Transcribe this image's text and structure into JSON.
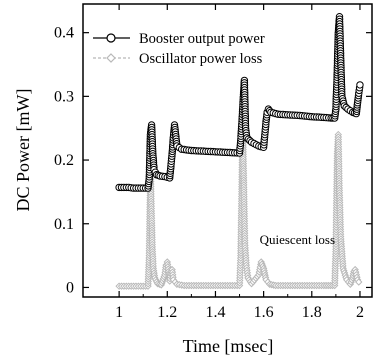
{
  "chart_data": {
    "type": "line",
    "title": "",
    "xlabel": "Time [msec]",
    "ylabel": "DC Power [mW]",
    "xlim": [
      0.85,
      2.05
    ],
    "ylim": [
      -0.015,
      0.445
    ],
    "x_ticks": [
      1,
      1.2,
      1.4,
      1.6,
      1.8,
      2
    ],
    "x_tick_labels": [
      "1",
      "1.2",
      "1.4",
      "1.6",
      "1.8",
      "2"
    ],
    "y_ticks": [
      0,
      0.1,
      0.2,
      0.3,
      0.4
    ],
    "y_tick_labels": [
      "0",
      "0.1",
      "0.2",
      "0.3",
      "0.4"
    ],
    "legend_position": "top-left",
    "grid": false,
    "series": [
      {
        "name": "Booster output power",
        "color": "#000000",
        "marker": "open-circle",
        "points": [
          [
            1.0,
            0.157
          ],
          [
            1.02,
            0.157
          ],
          [
            1.04,
            0.157
          ],
          [
            1.06,
            0.156
          ],
          [
            1.08,
            0.156
          ],
          [
            1.1,
            0.156
          ],
          [
            1.12,
            0.156
          ],
          [
            1.125,
            0.17
          ],
          [
            1.13,
            0.24
          ],
          [
            1.135,
            0.255
          ],
          [
            1.14,
            0.21
          ],
          [
            1.145,
            0.185
          ],
          [
            1.155,
            0.177
          ],
          [
            1.17,
            0.175
          ],
          [
            1.19,
            0.174
          ],
          [
            1.2,
            0.173
          ],
          [
            1.21,
            0.172
          ],
          [
            1.215,
            0.19
          ],
          [
            1.22,
            0.21
          ],
          [
            1.225,
            0.235
          ],
          [
            1.23,
            0.255
          ],
          [
            1.24,
            0.222
          ],
          [
            1.26,
            0.217
          ],
          [
            1.3,
            0.215
          ],
          [
            1.35,
            0.214
          ],
          [
            1.4,
            0.213
          ],
          [
            1.45,
            0.212
          ],
          [
            1.5,
            0.211
          ],
          [
            1.505,
            0.23
          ],
          [
            1.51,
            0.26
          ],
          [
            1.515,
            0.295
          ],
          [
            1.52,
            0.325
          ],
          [
            1.525,
            0.25
          ],
          [
            1.53,
            0.235
          ],
          [
            1.55,
            0.228
          ],
          [
            1.58,
            0.222
          ],
          [
            1.6,
            0.22
          ],
          [
            1.605,
            0.24
          ],
          [
            1.61,
            0.26
          ],
          [
            1.615,
            0.275
          ],
          [
            1.62,
            0.28
          ],
          [
            1.63,
            0.275
          ],
          [
            1.66,
            0.272
          ],
          [
            1.7,
            0.271
          ],
          [
            1.75,
            0.27
          ],
          [
            1.8,
            0.268
          ],
          [
            1.85,
            0.267
          ],
          [
            1.88,
            0.266
          ],
          [
            1.895,
            0.266
          ],
          [
            1.9,
            0.28
          ],
          [
            1.905,
            0.33
          ],
          [
            1.91,
            0.4
          ],
          [
            1.915,
            0.425
          ],
          [
            1.92,
            0.36
          ],
          [
            1.925,
            0.3
          ],
          [
            1.935,
            0.285
          ],
          [
            1.95,
            0.28
          ],
          [
            1.97,
            0.275
          ],
          [
            1.985,
            0.273
          ],
          [
            1.99,
            0.29
          ],
          [
            1.995,
            0.305
          ],
          [
            2.0,
            0.318
          ]
        ]
      },
      {
        "name": "Oscillator power loss",
        "color": "#b8b8b8",
        "marker": "open-diamond",
        "points": [
          [
            1.0,
            0.002
          ],
          [
            1.02,
            0.002
          ],
          [
            1.04,
            0.002
          ],
          [
            1.06,
            0.002
          ],
          [
            1.08,
            0.002
          ],
          [
            1.1,
            0.002
          ],
          [
            1.12,
            0.002
          ],
          [
            1.125,
            0.05
          ],
          [
            1.128,
            0.13
          ],
          [
            1.131,
            0.17
          ],
          [
            1.134,
            0.12
          ],
          [
            1.138,
            0.06
          ],
          [
            1.142,
            0.03
          ],
          [
            1.148,
            0.015
          ],
          [
            1.16,
            0.006
          ],
          [
            1.175,
            0.004
          ],
          [
            1.19,
            0.02
          ],
          [
            1.195,
            0.035
          ],
          [
            1.2,
            0.04
          ],
          [
            1.205,
            0.025
          ],
          [
            1.21,
            0.01
          ],
          [
            1.215,
            0.025
          ],
          [
            1.22,
            0.028
          ],
          [
            1.225,
            0.012
          ],
          [
            1.24,
            0.005
          ],
          [
            1.27,
            0.003
          ],
          [
            1.3,
            0.003
          ],
          [
            1.35,
            0.003
          ],
          [
            1.4,
            0.003
          ],
          [
            1.45,
            0.003
          ],
          [
            1.5,
            0.003
          ],
          [
            1.505,
            0.05
          ],
          [
            1.508,
            0.12
          ],
          [
            1.511,
            0.2
          ],
          [
            1.514,
            0.235
          ],
          [
            1.518,
            0.15
          ],
          [
            1.522,
            0.07
          ],
          [
            1.528,
            0.035
          ],
          [
            1.535,
            0.015
          ],
          [
            1.55,
            0.006
          ],
          [
            1.58,
            0.02
          ],
          [
            1.59,
            0.04
          ],
          [
            1.6,
            0.03
          ],
          [
            1.61,
            0.012
          ],
          [
            1.625,
            0.005
          ],
          [
            1.65,
            0.003
          ],
          [
            1.7,
            0.003
          ],
          [
            1.75,
            0.003
          ],
          [
            1.8,
            0.003
          ],
          [
            1.85,
            0.003
          ],
          [
            1.895,
            0.003
          ],
          [
            1.9,
            0.06
          ],
          [
            1.903,
            0.14
          ],
          [
            1.906,
            0.21
          ],
          [
            1.91,
            0.24
          ],
          [
            1.914,
            0.16
          ],
          [
            1.92,
            0.08
          ],
          [
            1.93,
            0.03
          ],
          [
            1.945,
            0.012
          ],
          [
            1.96,
            0.005
          ],
          [
            1.97,
            0.015
          ],
          [
            1.975,
            0.025
          ],
          [
            1.98,
            0.028
          ],
          [
            1.99,
            0.012
          ],
          [
            2.0,
            0.005
          ]
        ]
      }
    ],
    "annotations": [
      {
        "text": "Quiescent loss",
        "x": 1.74,
        "y": 0.068
      }
    ]
  }
}
